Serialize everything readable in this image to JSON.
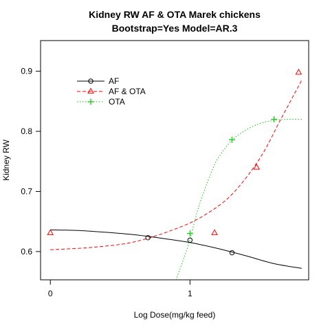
{
  "chart_data": {
    "type": "line",
    "title": "Kidney RW AF & OTA Marek chickens",
    "subtitle": "Bootstrap=Yes Model=AR.3",
    "xlabel": "Log Dose(mg/kg feed)",
    "ylabel": "Kidney RW",
    "xlim": [
      -0.07,
      1.85
    ],
    "ylim": [
      0.553,
      0.951
    ],
    "x_ticks": [
      0,
      1
    ],
    "x_tick_labels": [
      "0",
      "1"
    ],
    "y_ticks": [
      0.6,
      0.7,
      0.8,
      0.9
    ],
    "y_tick_labels": [
      "0.6",
      "0.7",
      "0.8",
      "0.9"
    ],
    "grid": false,
    "legend_position": "top-left",
    "series": [
      {
        "name": "AF",
        "color": "#000000",
        "line_style": "solid",
        "marker": "circle",
        "points": {
          "x": [
            0.699,
            1.0,
            1.301
          ],
          "y": [
            0.623,
            0.619,
            0.598
          ]
        },
        "curve": {
          "x": [
            0.0,
            0.2,
            0.4,
            0.6,
            0.8,
            1.0,
            1.2,
            1.4,
            1.6,
            1.8
          ],
          "y": [
            0.636,
            0.635,
            0.632,
            0.628,
            0.622,
            0.615,
            0.605,
            0.593,
            0.58,
            0.572
          ]
        }
      },
      {
        "name": "AF & OTA",
        "color": "#ff0000",
        "line_style": "dashed",
        "marker": "triangle",
        "points": {
          "x": [
            0.0,
            1.176,
            1.477,
            1.778
          ],
          "y": [
            0.631,
            0.631,
            0.74,
            0.898
          ]
        },
        "curve": {
          "x": [
            0.0,
            0.3,
            0.6,
            0.9,
            1.1,
            1.3,
            1.5,
            1.65,
            1.8
          ],
          "y": [
            0.603,
            0.607,
            0.616,
            0.638,
            0.66,
            0.695,
            0.755,
            0.82,
            0.885
          ]
        }
      },
      {
        "name": "OTA",
        "color": "#00cc00",
        "line_style": "dotted",
        "marker": "plus",
        "points": {
          "x": [
            1.0,
            1.301,
            1.602
          ],
          "y": [
            0.63,
            0.786,
            0.82
          ]
        },
        "curve": {
          "x": [
            0.9,
            0.95,
            1.0,
            1.05,
            1.1,
            1.15,
            1.2,
            1.3,
            1.4,
            1.5,
            1.6,
            1.7,
            1.8
          ],
          "y": [
            0.553,
            0.585,
            0.62,
            0.665,
            0.7,
            0.73,
            0.755,
            0.785,
            0.802,
            0.813,
            0.818,
            0.82,
            0.82
          ]
        }
      }
    ]
  }
}
